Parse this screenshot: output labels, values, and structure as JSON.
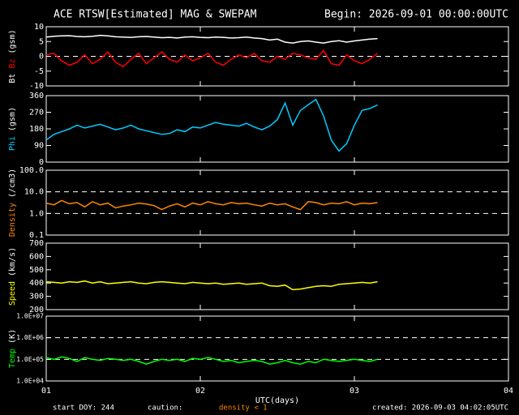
{
  "header": {
    "title": "ACE RTSW[Estimated] MAG & SWEPAM",
    "begin": "Begin: 2026-09-01 00:00:00UTC"
  },
  "footer": {
    "start": "start DOY: 244",
    "caution": "caution:",
    "density_note": "density < 1",
    "created": "created: 2026-09-03 04:02:05UTC"
  },
  "chart_data": [
    {
      "type": "line",
      "ylabel": [
        {
          "text": "Bt",
          "color": "#ffffff"
        },
        {
          "text": "Bz",
          "color": "#ff0000"
        },
        {
          "text": "(gsm)",
          "color": "#ffffff"
        }
      ],
      "xlim": [
        1,
        4
      ],
      "xticks": [
        1,
        2,
        3,
        4
      ],
      "ylim": [
        -10,
        10
      ],
      "yticks": [
        -10,
        -5,
        0,
        5,
        10
      ],
      "reference_lines": [
        0
      ],
      "log": false,
      "x": [
        1.0,
        1.05,
        1.1,
        1.15,
        1.2,
        1.25,
        1.3,
        1.35,
        1.4,
        1.45,
        1.5,
        1.55,
        1.6,
        1.65,
        1.7,
        1.75,
        1.8,
        1.85,
        1.9,
        1.95,
        2.0,
        2.05,
        2.1,
        2.15,
        2.2,
        2.25,
        2.3,
        2.35,
        2.4,
        2.45,
        2.5,
        2.55,
        2.6,
        2.65,
        2.7,
        2.75,
        2.8,
        2.85,
        2.9,
        2.95,
        3.0,
        3.05,
        3.1,
        3.15
      ],
      "series": [
        {
          "name": "Bt",
          "color": "#ffffff",
          "values": [
            6.5,
            6.8,
            6.9,
            7.0,
            6.7,
            6.6,
            6.8,
            7.1,
            6.9,
            6.6,
            6.5,
            6.4,
            6.6,
            6.7,
            6.5,
            6.3,
            6.4,
            6.2,
            6.5,
            6.6,
            6.4,
            6.3,
            6.5,
            6.4,
            6.2,
            6.3,
            6.5,
            6.2,
            6.0,
            5.5,
            5.8,
            4.8,
            4.5,
            5.0,
            5.2,
            4.8,
            4.5,
            5.0,
            5.3,
            4.8,
            5.2,
            5.5,
            5.8,
            6.0
          ]
        },
        {
          "name": "Bz",
          "color": "#ff0000",
          "values": [
            0.5,
            1.0,
            -1.5,
            -3.0,
            -2.0,
            0.5,
            -2.5,
            -1.0,
            1.5,
            -2.0,
            -3.5,
            -1.0,
            1.0,
            -2.5,
            -0.5,
            1.5,
            -1.0,
            -2.0,
            0.5,
            -1.5,
            -0.5,
            1.0,
            -2.0,
            -3.0,
            -1.0,
            0.5,
            -0.5,
            1.0,
            -1.5,
            -2.0,
            0.0,
            -1.0,
            1.0,
            0.5,
            -0.5,
            -1.0,
            2.0,
            -2.5,
            -3.0,
            0.5,
            -1.5,
            -2.5,
            -1.0,
            1.0
          ]
        }
      ]
    },
    {
      "type": "line",
      "ylabel": [
        {
          "text": "Phi",
          "color": "#00ccff"
        },
        {
          "text": "(gsm)",
          "color": "#ffffff"
        }
      ],
      "xlim": [
        1,
        4
      ],
      "xticks": [
        1,
        2,
        3,
        4
      ],
      "ylim": [
        0,
        360
      ],
      "yticks": [
        0,
        90,
        180,
        270,
        360
      ],
      "reference_lines": [],
      "log": false,
      "x": [
        1.0,
        1.05,
        1.1,
        1.15,
        1.2,
        1.25,
        1.3,
        1.35,
        1.4,
        1.45,
        1.5,
        1.55,
        1.6,
        1.65,
        1.7,
        1.75,
        1.8,
        1.85,
        1.9,
        1.95,
        2.0,
        2.05,
        2.1,
        2.15,
        2.2,
        2.25,
        2.3,
        2.35,
        2.4,
        2.45,
        2.5,
        2.55,
        2.6,
        2.65,
        2.7,
        2.75,
        2.8,
        2.85,
        2.9,
        2.95,
        3.0,
        3.05,
        3.1,
        3.15
      ],
      "series": [
        {
          "name": "Phi",
          "color": "#00ccff",
          "values": [
            120,
            150,
            165,
            180,
            200,
            185,
            195,
            205,
            190,
            175,
            185,
            200,
            180,
            170,
            160,
            150,
            155,
            175,
            165,
            190,
            185,
            200,
            215,
            205,
            200,
            195,
            210,
            190,
            175,
            195,
            230,
            320,
            200,
            280,
            310,
            340,
            250,
            120,
            60,
            100,
            200,
            280,
            290,
            310
          ]
        }
      ]
    },
    {
      "type": "line",
      "ylabel": [
        {
          "text": "Density",
          "color": "#ff8800"
        },
        {
          "text": "(/cm3)",
          "color": "#ffffff"
        }
      ],
      "xlim": [
        1,
        4
      ],
      "xticks": [
        1,
        2,
        3,
        4
      ],
      "ylim": [
        0.1,
        100
      ],
      "yticks": [
        0.1,
        {
          "value": 1,
          "label": "1.0"
        },
        {
          "value": 10,
          "label": "10.0"
        },
        {
          "value": 100,
          "label": "100.0"
        }
      ],
      "reference_lines": [
        1,
        10
      ],
      "log": true,
      "x": [
        1.0,
        1.05,
        1.1,
        1.15,
        1.2,
        1.25,
        1.3,
        1.35,
        1.4,
        1.45,
        1.5,
        1.55,
        1.6,
        1.65,
        1.7,
        1.75,
        1.8,
        1.85,
        1.9,
        1.95,
        2.0,
        2.05,
        2.1,
        2.15,
        2.2,
        2.25,
        2.3,
        2.35,
        2.4,
        2.45,
        2.5,
        2.55,
        2.6,
        2.65,
        2.7,
        2.75,
        2.8,
        2.85,
        2.9,
        2.95,
        3.0,
        3.05,
        3.1,
        3.15
      ],
      "series": [
        {
          "name": "Density",
          "color": "#ff8800",
          "values": [
            3,
            2.5,
            4,
            2.8,
            3.2,
            2,
            3.5,
            2.5,
            3,
            1.8,
            2.2,
            2.5,
            3,
            2.7,
            2.3,
            1.5,
            2.2,
            2.8,
            2,
            3,
            2.5,
            3.5,
            2.8,
            2.5,
            3.2,
            2.8,
            3,
            2.5,
            2.2,
            3,
            2.5,
            2.8,
            2,
            1.5,
            3.5,
            3.2,
            2.5,
            3,
            2.8,
            3.5,
            2.5,
            3,
            2.8,
            3.2
          ]
        }
      ]
    },
    {
      "type": "line",
      "ylabel": [
        {
          "text": "Speed",
          "color": "#ffff00"
        },
        {
          "text": "(km/s)",
          "color": "#ffffff"
        }
      ],
      "xlim": [
        1,
        4
      ],
      "xticks": [
        1,
        2,
        3,
        4
      ],
      "ylim": [
        200,
        700
      ],
      "yticks": [
        200,
        300,
        400,
        500,
        600,
        700
      ],
      "reference_lines": [],
      "log": false,
      "x": [
        1.0,
        1.05,
        1.1,
        1.15,
        1.2,
        1.25,
        1.3,
        1.35,
        1.4,
        1.45,
        1.5,
        1.55,
        1.6,
        1.65,
        1.7,
        1.75,
        1.8,
        1.85,
        1.9,
        1.95,
        2.0,
        2.05,
        2.1,
        2.15,
        2.2,
        2.25,
        2.3,
        2.35,
        2.4,
        2.45,
        2.5,
        2.55,
        2.6,
        2.65,
        2.7,
        2.75,
        2.8,
        2.85,
        2.9,
        2.95,
        3.0,
        3.05,
        3.1,
        3.15
      ],
      "series": [
        {
          "name": "Speed",
          "color": "#ffff00",
          "values": [
            410,
            405,
            400,
            410,
            405,
            415,
            400,
            410,
            395,
            400,
            405,
            410,
            400,
            395,
            405,
            410,
            405,
            400,
            395,
            405,
            400,
            395,
            400,
            390,
            395,
            400,
            390,
            395,
            400,
            380,
            375,
            385,
            350,
            355,
            365,
            375,
            380,
            375,
            390,
            395,
            400,
            405,
            400,
            410
          ]
        }
      ]
    },
    {
      "type": "line",
      "ylabel": [
        {
          "text": "Temp",
          "color": "#00ff00"
        },
        {
          "text": "(K)",
          "color": "#ffffff"
        }
      ],
      "xlim": [
        1,
        4
      ],
      "xticks": [
        {
          "value": 1,
          "label": "01"
        },
        {
          "value": 2,
          "label": "02"
        },
        {
          "value": 3,
          "label": "03"
        },
        {
          "value": 4,
          "label": "04"
        }
      ],
      "xlabel": "UTC(days)",
      "ylim": [
        10000,
        10000000
      ],
      "yticks": [
        {
          "value": 10000,
          "label": "1.0E+04"
        },
        {
          "value": 100000,
          "label": "1.0E+05"
        },
        {
          "value": 1000000,
          "label": "1.0E+06"
        },
        {
          "value": 10000000,
          "label": "1.0E+07"
        }
      ],
      "reference_lines": [
        100000,
        1000000
      ],
      "log": true,
      "x": [
        1.0,
        1.05,
        1.1,
        1.15,
        1.2,
        1.25,
        1.3,
        1.35,
        1.4,
        1.45,
        1.5,
        1.55,
        1.6,
        1.65,
        1.7,
        1.75,
        1.8,
        1.85,
        1.9,
        1.95,
        2.0,
        2.05,
        2.1,
        2.15,
        2.2,
        2.25,
        2.3,
        2.35,
        2.4,
        2.45,
        2.5,
        2.55,
        2.6,
        2.65,
        2.7,
        2.75,
        2.8,
        2.85,
        2.9,
        2.95,
        3.0,
        3.05,
        3.1,
        3.15
      ],
      "series": [
        {
          "name": "Temp",
          "color": "#00ff00",
          "values": [
            120000,
            100000,
            130000,
            110000,
            80000,
            120000,
            100000,
            90000,
            110000,
            100000,
            90000,
            100000,
            80000,
            60000,
            80000,
            100000,
            90000,
            100000,
            80000,
            110000,
            100000,
            120000,
            100000,
            80000,
            90000,
            70000,
            80000,
            90000,
            80000,
            60000,
            70000,
            90000,
            70000,
            60000,
            80000,
            70000,
            100000,
            90000,
            80000,
            90000,
            100000,
            90000,
            80000,
            100000
          ]
        }
      ]
    }
  ]
}
